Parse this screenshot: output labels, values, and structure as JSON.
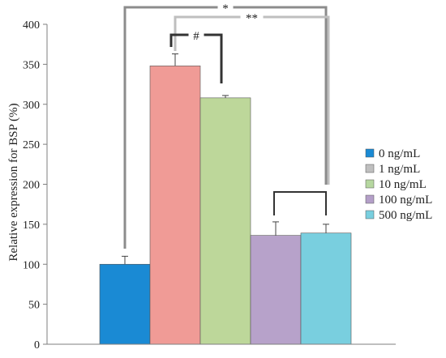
{
  "chart_data": {
    "type": "bar",
    "ylabel": "Relative expression for BSP (%)",
    "xlabel": "",
    "ylim": [
      0,
      400
    ],
    "yticks": [
      0,
      50,
      100,
      150,
      200,
      250,
      300,
      350,
      400
    ],
    "grid": false,
    "legend_position": "right",
    "categories": [
      "0 ng/mL",
      "1 ng/mL",
      "10 ng/mL",
      "100 ng/mL",
      "500 ng/mL"
    ],
    "values": [
      100,
      348,
      308,
      136,
      139
    ],
    "errors": [
      10,
      15,
      3,
      17,
      11
    ],
    "bar_colors": [
      "#1a8ad4",
      "#f09b96",
      "#bdd79a",
      "#b7a2ca",
      "#79cfdf"
    ],
    "legend": [
      {
        "label": "0 ng/mL",
        "color": "#1a8ad4"
      },
      {
        "label": "1 ng/mL",
        "color": "#bfbfbf"
      },
      {
        "label": "10 ng/mL",
        "color": "#b6d7a0"
      },
      {
        "label": "100 ng/mL",
        "color": "#b49fc8"
      },
      {
        "label": "500 ng/mL",
        "color": "#79cfdf"
      }
    ],
    "annotations": [
      {
        "text": "*",
        "between": [
          0,
          4
        ],
        "color": "#8c8c8c"
      },
      {
        "text": "**",
        "between": [
          1,
          4
        ],
        "color": "#bfbfbf"
      },
      {
        "text": "#",
        "between": [
          1,
          2
        ],
        "color": "#333333"
      },
      {
        "text": "",
        "between": [
          3,
          4
        ],
        "color": "#333333"
      }
    ]
  }
}
